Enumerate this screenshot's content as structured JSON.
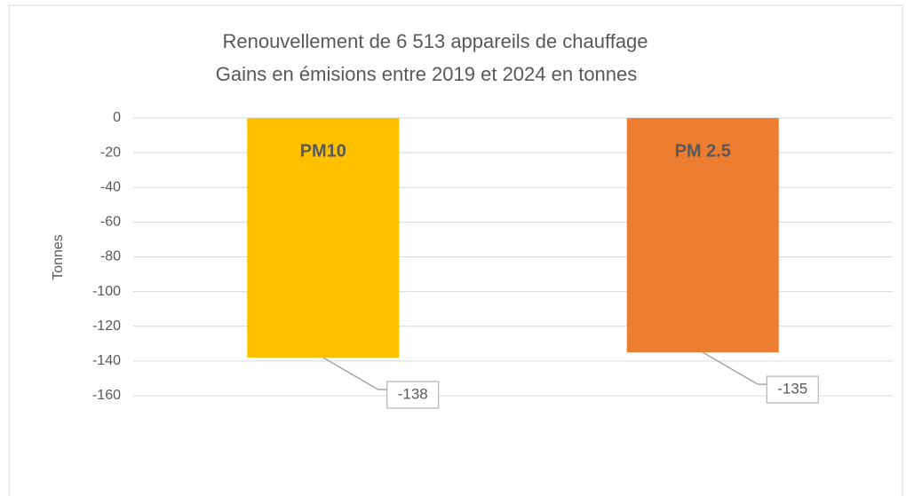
{
  "chart_data": {
    "type": "bar",
    "title": "Renouvellement de 6 513 appareils de chauffage",
    "subtitle": "Gains en émisions entre 2019 et 2024 en tonnes",
    "y_label": "Tonnes",
    "categories": [
      "PM10",
      "PM 2.5"
    ],
    "values": [
      -138,
      -135
    ],
    "colors": [
      "#ffc000",
      "#ed7d31"
    ],
    "ylim": [
      -160,
      0
    ],
    "yticks": [
      0,
      -20,
      -40,
      -60,
      -80,
      -100,
      -120,
      -140,
      -160
    ],
    "grid": true
  }
}
